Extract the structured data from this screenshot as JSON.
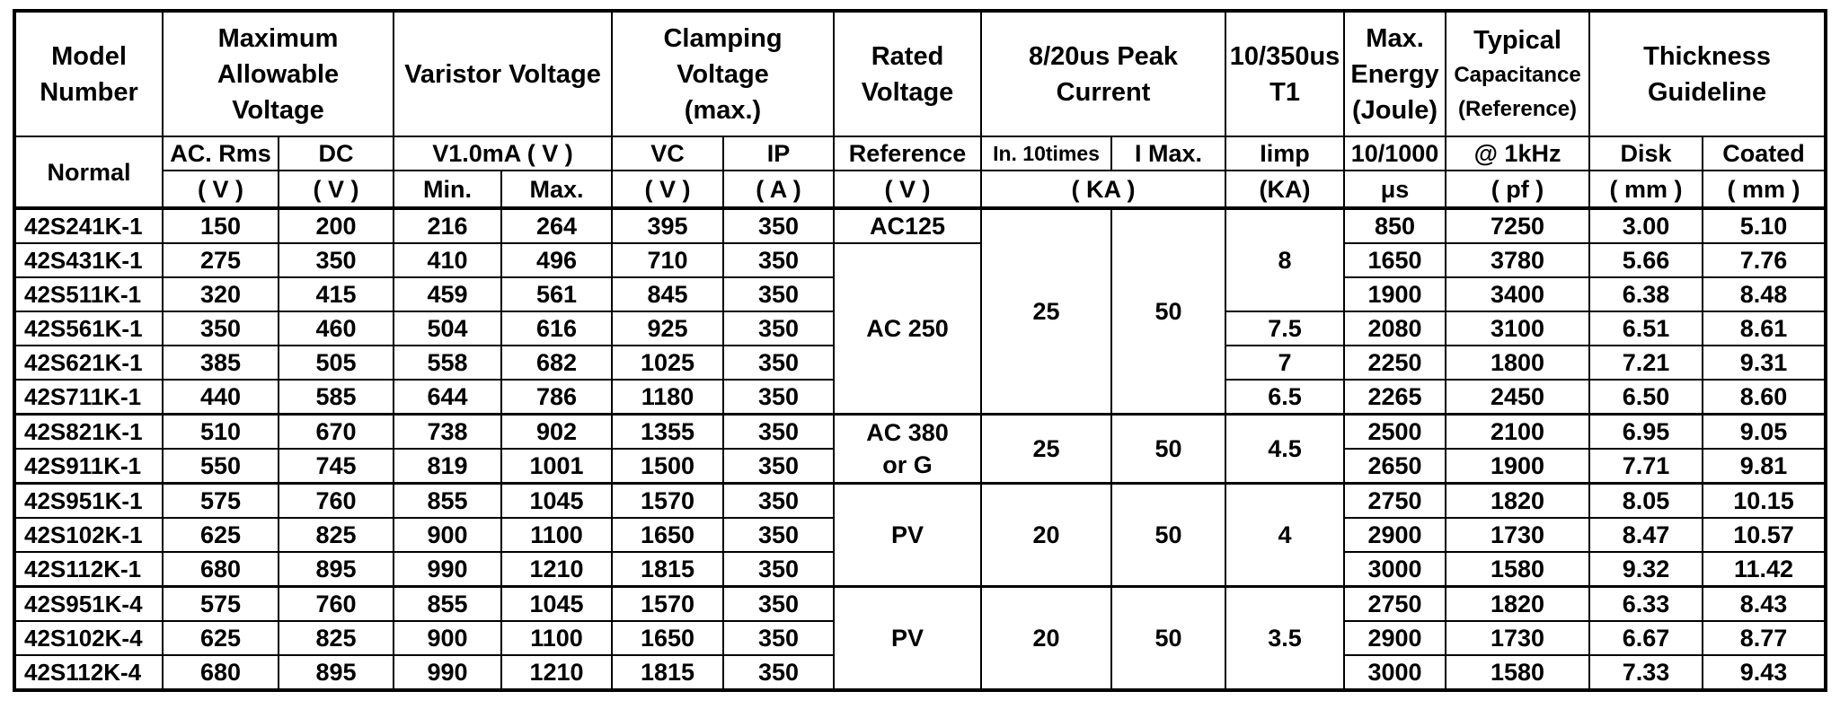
{
  "table": {
    "header": {
      "top": [
        {
          "lines": [
            "Model",
            "Number"
          ],
          "colspan": 1
        },
        {
          "lines": [
            "Maximum",
            "Allowable",
            "Voltage"
          ],
          "colspan": 2
        },
        {
          "lines": [
            "Varistor Voltage"
          ],
          "colspan": 2
        },
        {
          "lines": [
            "Clamping",
            "Voltage",
            "(max.)"
          ],
          "colspan": 2
        },
        {
          "lines": [
            "Rated",
            "Voltage"
          ],
          "colspan": 1
        },
        {
          "lines": [
            "8/20us Peak",
            "Current"
          ],
          "colspan": 2
        },
        {
          "lines": [
            "10/350us",
            "T1"
          ],
          "colspan": 1
        },
        {
          "lines": [
            "Max.",
            "Energy",
            "(Joule)"
          ],
          "colspan": 1
        },
        {
          "lines": [
            "Typical"
          ],
          "small_lines": [
            "Capacitance",
            "(Reference)"
          ],
          "colspan": 1
        },
        {
          "lines": [
            "Thickness",
            "Guideline"
          ],
          "colspan": 2
        }
      ],
      "sub1": [
        {
          "text": "Normal",
          "rowspan": 2
        },
        {
          "text": "AC. Rms"
        },
        {
          "text": "DC"
        },
        {
          "text": "V1.0mA ( V )",
          "colspan": 2
        },
        {
          "text": "VC"
        },
        {
          "text": "IP"
        },
        {
          "text": "Reference"
        },
        {
          "text": "In. 10times",
          "small": true
        },
        {
          "text": "I Max."
        },
        {
          "text": "Iimp"
        },
        {
          "text": "10/1000"
        },
        {
          "text": "@ 1kHz"
        },
        {
          "text": "Disk"
        },
        {
          "text": "Coated"
        }
      ],
      "sub2": [
        {
          "text": "( V )"
        },
        {
          "text": "( V )"
        },
        {
          "text": "Min."
        },
        {
          "text": "Max."
        },
        {
          "text": "( V )"
        },
        {
          "text": "( A )"
        },
        {
          "text": "( V )"
        },
        {
          "text": "( KA )",
          "colspan": 2
        },
        {
          "text": "(KA)"
        },
        {
          "text": "μs"
        },
        {
          "text": "( pf )"
        },
        {
          "text": "( mm )"
        },
        {
          "text": "( mm )"
        }
      ]
    },
    "rows": [
      {
        "cells": [
          "42S241K-1",
          "150",
          "200",
          "216",
          "264",
          "395",
          "350",
          "AC125",
          {
            "text": "25",
            "rowspan": 6
          },
          {
            "text": "50",
            "rowspan": 6
          },
          {
            "text": "8",
            "rowspan": 3
          },
          "850",
          "7250",
          "3.00",
          "5.10"
        ]
      },
      {
        "cells": [
          "42S431K-1",
          "275",
          "350",
          "410",
          "496",
          "710",
          "350",
          {
            "text": "AC 250",
            "rowspan": 5
          },
          "1650",
          "3780",
          "5.66",
          "7.76"
        ]
      },
      {
        "cells": [
          "42S511K-1",
          "320",
          "415",
          "459",
          "561",
          "845",
          "350",
          "1900",
          "3400",
          "6.38",
          "8.48"
        ]
      },
      {
        "cells": [
          "42S561K-1",
          "350",
          "460",
          "504",
          "616",
          "925",
          "350",
          "7.5",
          "2080",
          "3100",
          "6.51",
          "8.61"
        ]
      },
      {
        "cells": [
          "42S621K-1",
          "385",
          "505",
          "558",
          "682",
          "1025",
          "350",
          "7",
          "2250",
          "1800",
          "7.21",
          "9.31"
        ]
      },
      {
        "cells": [
          "42S711K-1",
          "440",
          "585",
          "644",
          "786",
          "1180",
          "350",
          "6.5",
          "2265",
          "2450",
          "6.50",
          "8.60"
        ]
      },
      {
        "section_start": true,
        "cells": [
          "42S821K-1",
          "510",
          "670",
          "738",
          "902",
          "1355",
          "350",
          {
            "text": "AC 380\nor G",
            "rowspan": 2
          },
          {
            "text": "25",
            "rowspan": 2
          },
          {
            "text": "50",
            "rowspan": 2
          },
          {
            "text": "4.5",
            "rowspan": 2
          },
          "2500",
          "2100",
          "6.95",
          "9.05"
        ]
      },
      {
        "cells": [
          "42S911K-1",
          "550",
          "745",
          "819",
          "1001",
          "1500",
          "350",
          "2650",
          "1900",
          "7.71",
          "9.81"
        ]
      },
      {
        "section_start": true,
        "cells": [
          "42S951K-1",
          "575",
          "760",
          "855",
          "1045",
          "1570",
          "350",
          {
            "text": "PV",
            "rowspan": 3
          },
          {
            "text": "20",
            "rowspan": 3
          },
          {
            "text": "50",
            "rowspan": 3
          },
          {
            "text": "4",
            "rowspan": 3
          },
          "2750",
          "1820",
          "8.05",
          "10.15"
        ]
      },
      {
        "cells": [
          "42S102K-1",
          "625",
          "825",
          "900",
          "1100",
          "1650",
          "350",
          "2900",
          "1730",
          "8.47",
          "10.57"
        ]
      },
      {
        "cells": [
          "42S112K-1",
          "680",
          "895",
          "990",
          "1210",
          "1815",
          "350",
          "3000",
          "1580",
          "9.32",
          "11.42"
        ]
      },
      {
        "section_start": true,
        "cells": [
          "42S951K-4",
          "575",
          "760",
          "855",
          "1045",
          "1570",
          "350",
          {
            "text": "PV",
            "rowspan": 3
          },
          {
            "text": "20",
            "rowspan": 3
          },
          {
            "text": "50",
            "rowspan": 3
          },
          {
            "text": "3.5",
            "rowspan": 3
          },
          "2750",
          "1820",
          "6.33",
          "8.43"
        ]
      },
      {
        "cells": [
          "42S102K-4",
          "625",
          "825",
          "900",
          "1100",
          "1650",
          "350",
          "2900",
          "1730",
          "6.67",
          "8.77"
        ]
      },
      {
        "cells": [
          "42S112K-4",
          "680",
          "895",
          "990",
          "1210",
          "1815",
          "350",
          "3000",
          "1580",
          "7.33",
          "9.43"
        ]
      }
    ]
  }
}
